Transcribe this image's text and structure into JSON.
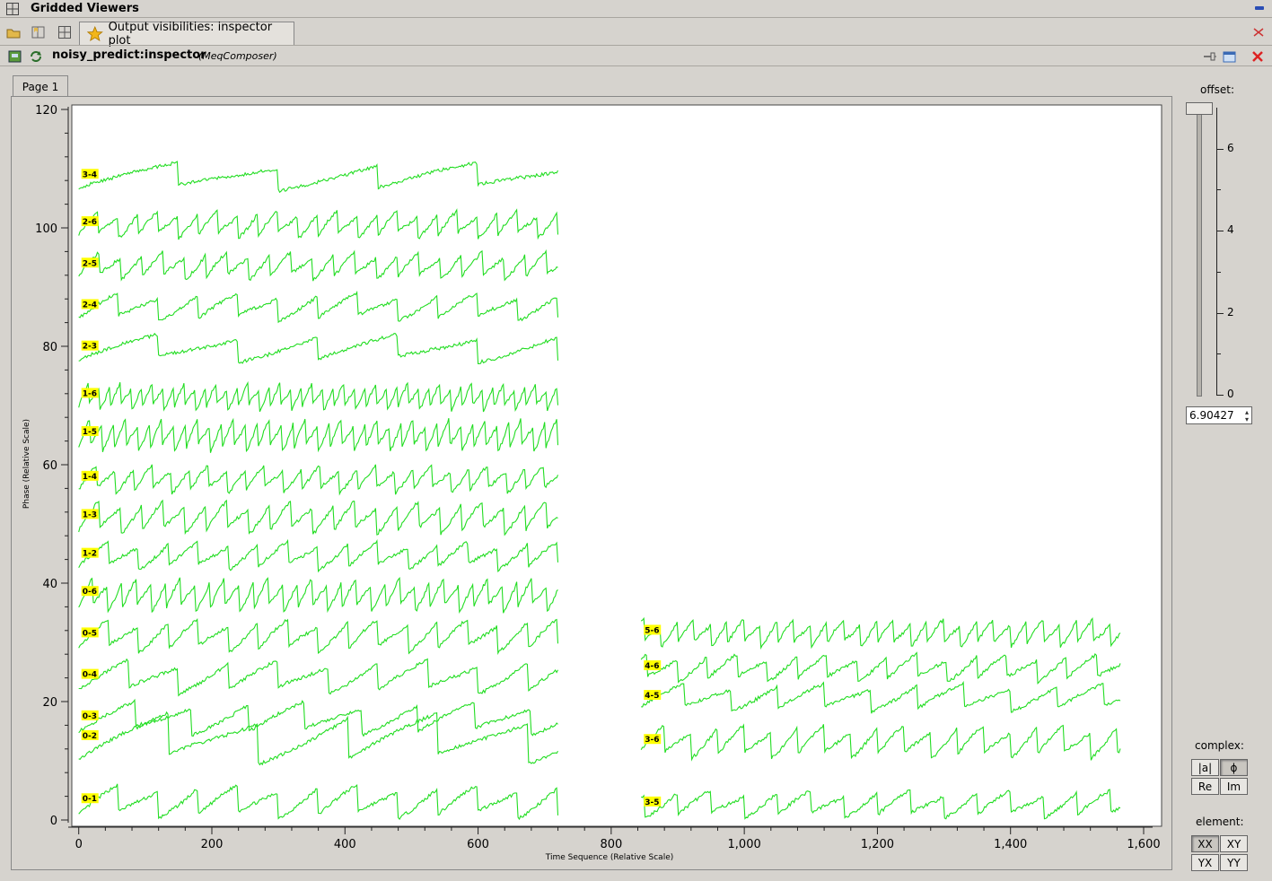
{
  "window": {
    "title": "Gridded Viewers"
  },
  "tabs": [
    {
      "label": "Output visibilities: inspector plot",
      "active": true
    }
  ],
  "panel": {
    "title": "noisy_predict:inspector",
    "subtitle": "(MeqComposer)"
  },
  "page_tab": {
    "label": "Page 1"
  },
  "side": {
    "offset_label": "offset:",
    "offset_value": "6.90427",
    "offset_ticks": [
      "6",
      "4",
      "2",
      "0"
    ],
    "complex_label": "complex:",
    "complex_buttons": [
      "|a|",
      "ϕ",
      "Re",
      "Im"
    ],
    "complex_selected": "ϕ",
    "element_label": "element:",
    "element_buttons": [
      "XX",
      "XY",
      "YX",
      "YY"
    ],
    "element_selected": "XX"
  },
  "chart_data": {
    "type": "line",
    "title": "",
    "xlabel": "Time Sequence (Relative Scale)",
    "ylabel": "Phase (Relative Scale)",
    "xlim": [
      -5,
      1600
    ],
    "ylim": [
      0,
      120
    ],
    "xticks": [
      "0",
      "200",
      "400",
      "600",
      "800",
      "1,000",
      "1,200",
      "1,400",
      "1,600"
    ],
    "yticks": [
      "0",
      "20",
      "40",
      "60",
      "80",
      "100",
      "120"
    ],
    "line_color": "#22dd22",
    "label_color": "#ffff00",
    "series": [
      {
        "name": "0-1",
        "x_range": [
          0,
          720
        ],
        "base": 0,
        "amp": 6,
        "period": 60
      },
      {
        "name": "0-2",
        "x_range": [
          0,
          720
        ],
        "base": 9,
        "amp": 9,
        "period": 135
      },
      {
        "name": "0-3",
        "x_range": [
          0,
          720
        ],
        "base": 14,
        "amp": 6,
        "period": 85
      },
      {
        "name": "0-4",
        "x_range": [
          0,
          720
        ],
        "base": 21,
        "amp": 6,
        "period": 75
      },
      {
        "name": "0-5",
        "x_range": [
          0,
          720
        ],
        "base": 28,
        "amp": 6,
        "period": 45
      },
      {
        "name": "0-6",
        "x_range": [
          0,
          720
        ],
        "base": 35,
        "amp": 6,
        "period": 22
      },
      {
        "name": "1-2",
        "x_range": [
          0,
          720
        ],
        "base": 42,
        "amp": 5,
        "period": 45
      },
      {
        "name": "1-3",
        "x_range": [
          0,
          720
        ],
        "base": 48,
        "amp": 6,
        "period": 32
      },
      {
        "name": "1-4",
        "x_range": [
          0,
          720
        ],
        "base": 55,
        "amp": 5,
        "period": 28
      },
      {
        "name": "1-5",
        "x_range": [
          0,
          720
        ],
        "base": 62,
        "amp": 6,
        "period": 18
      },
      {
        "name": "1-6",
        "x_range": [
          0,
          720
        ],
        "base": 69,
        "amp": 5,
        "period": 16
      },
      {
        "name": "2-3",
        "x_range": [
          0,
          720
        ],
        "base": 77,
        "amp": 5,
        "period": 120
      },
      {
        "name": "2-4",
        "x_range": [
          0,
          720
        ],
        "base": 84,
        "amp": 5,
        "period": 60
      },
      {
        "name": "2-5",
        "x_range": [
          0,
          720
        ],
        "base": 91,
        "amp": 5,
        "period": 32
      },
      {
        "name": "2-6",
        "x_range": [
          0,
          720
        ],
        "base": 98,
        "amp": 5,
        "period": 30
      },
      {
        "name": "3-4",
        "x_range": [
          0,
          720
        ],
        "base": 106,
        "amp": 5,
        "period": 150
      },
      {
        "name": "3-5",
        "x_range": [
          845,
          1565
        ],
        "base": 0,
        "amp": 5,
        "period": 50
      },
      {
        "name": "3-6",
        "x_range": [
          845,
          1565
        ],
        "base": 10,
        "amp": 6,
        "period": 40
      },
      {
        "name": "4-5",
        "x_range": [
          845,
          1565
        ],
        "base": 18,
        "amp": 5,
        "period": 70
      },
      {
        "name": "4-6",
        "x_range": [
          845,
          1565
        ],
        "base": 23,
        "amp": 5,
        "period": 45
      },
      {
        "name": "5-6",
        "x_range": [
          845,
          1565
        ],
        "base": 29,
        "amp": 5,
        "period": 25
      }
    ]
  }
}
